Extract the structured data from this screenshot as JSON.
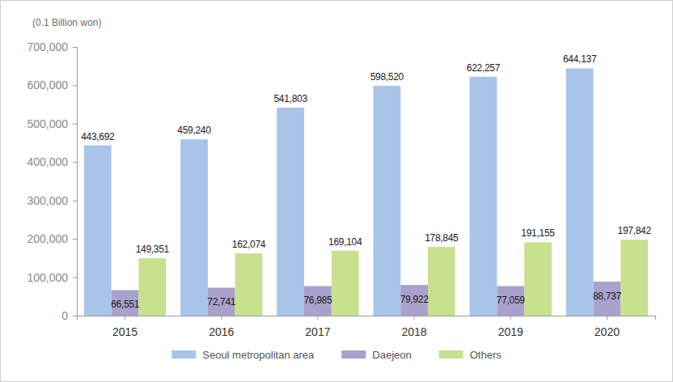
{
  "chart_data": {
    "type": "bar",
    "ylabel": "(0.1 Billion won)",
    "categories": [
      "2015",
      "2016",
      "2017",
      "2018",
      "2019",
      "2020"
    ],
    "series": [
      {
        "name": "Seoul metropolitan area",
        "color": "#a8c5e9",
        "values": [
          443692,
          459240,
          541803,
          598520,
          622257,
          644137
        ],
        "value_labels": [
          "443,692",
          "459,240",
          "541,803",
          "598,520",
          "622,257",
          "644,137"
        ]
      },
      {
        "name": "Daejeon",
        "color": "#a9a2cc",
        "values": [
          66551,
          72741,
          76985,
          79922,
          77059,
          88737
        ],
        "value_labels": [
          "66,551",
          "72,741",
          "76,985",
          "79,922",
          "77,059",
          "88,737"
        ]
      },
      {
        "name": "Others",
        "color": "#c8e18f",
        "values": [
          149351,
          162074,
          169104,
          178845,
          191155,
          197842
        ],
        "value_labels": [
          "149,351",
          "162,074",
          "169,104",
          "178,845",
          "191,155",
          "197,842"
        ]
      }
    ],
    "ylim": [
      0,
      700000
    ],
    "yticks": [
      0,
      {
        "value": 100000,
        "label": "100,000"
      },
      {
        "value": 200000,
        "label": "200,000"
      },
      {
        "value": 300000,
        "label": "300,000"
      },
      {
        "value": 400000,
        "label": "400,000"
      },
      {
        "value": 500000,
        "label": "500,000"
      },
      {
        "value": 600000,
        "label": "600,000"
      },
      {
        "value": 700000,
        "label": "700,000"
      }
    ],
    "grid": false,
    "data_labels": true,
    "legend": "bottom"
  }
}
